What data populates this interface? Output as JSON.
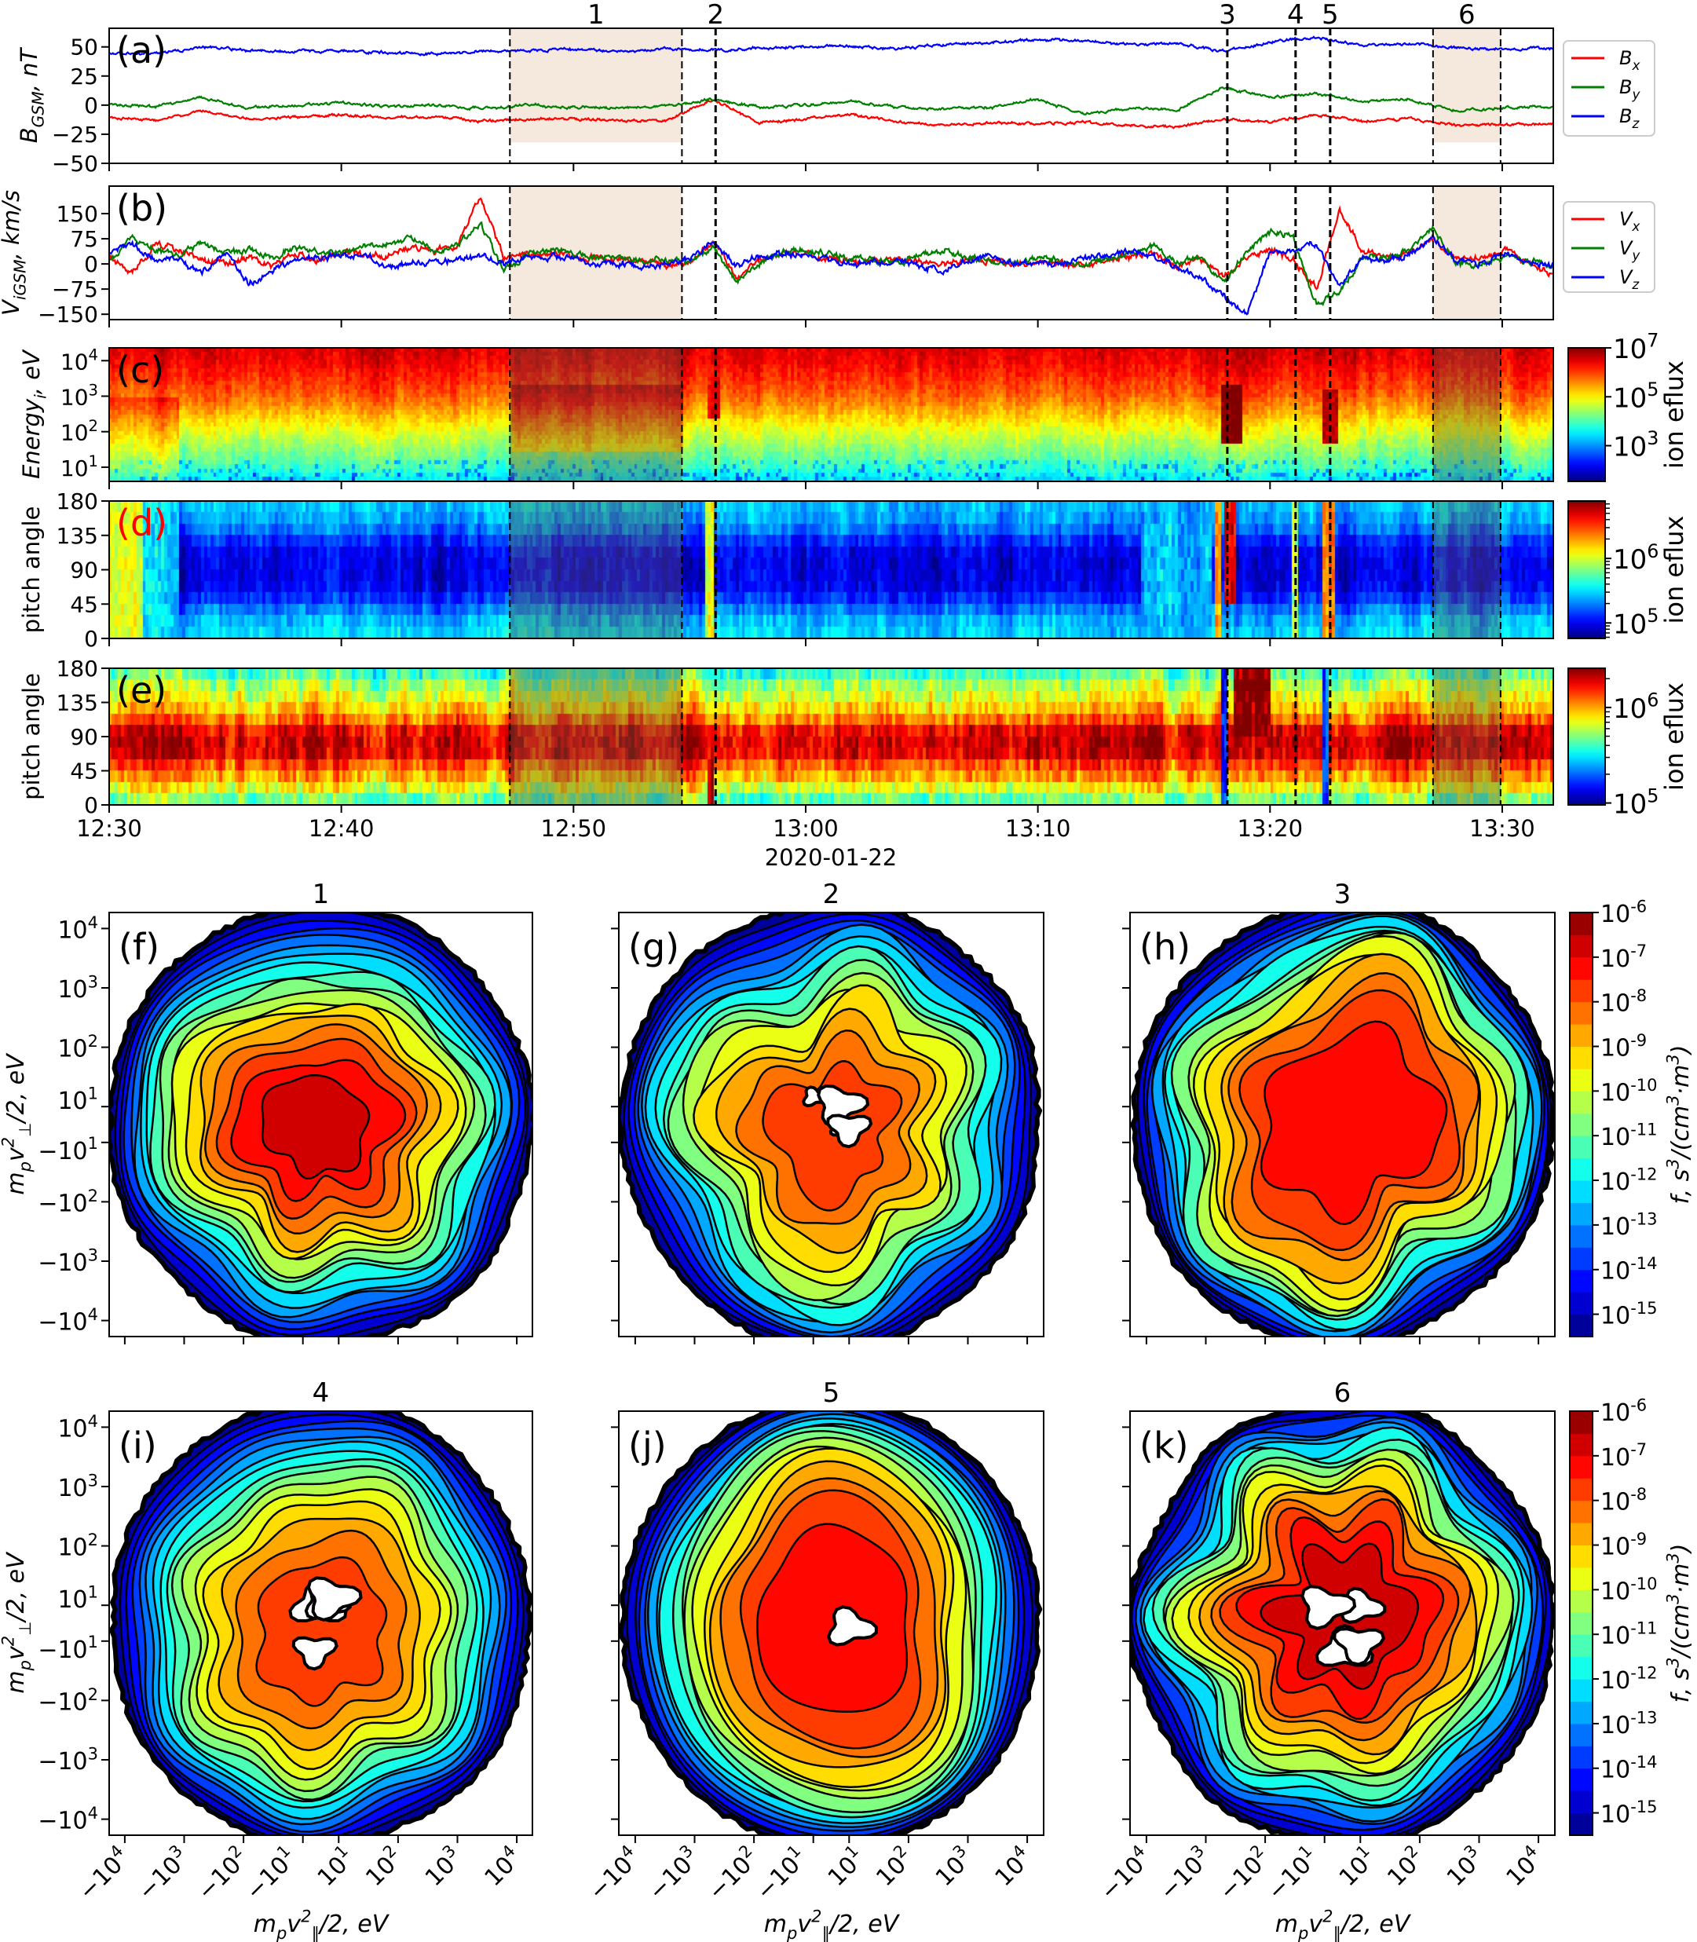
{
  "figure": {
    "date_label": "2020-01-22",
    "time_ticks": [
      {
        "t": 0,
        "label": "12:30"
      },
      {
        "t": 10,
        "label": "12:40"
      },
      {
        "t": 20,
        "label": "12:50"
      },
      {
        "t": 30,
        "label": "13:00"
      },
      {
        "t": 40,
        "label": "13:10"
      },
      {
        "t": 50,
        "label": "13:20"
      },
      {
        "t": 60,
        "label": "13:30"
      }
    ],
    "x_units": "minutes since 12:30 UT",
    "xlim": [
      0,
      62.2
    ],
    "events": [
      {
        "label": "1",
        "start": 17.26,
        "end": 24.67,
        "shaded": true
      },
      {
        "label": "2",
        "time": 26.12
      },
      {
        "label": "3",
        "time": 48.16
      },
      {
        "label": "4",
        "time": 51.1
      },
      {
        "label": "5",
        "time": 52.59
      },
      {
        "label": "6",
        "start": 57.02,
        "end": 59.93,
        "shaded": true
      }
    ]
  },
  "chart_data": [
    {
      "id": "a",
      "type": "line",
      "panel_label": "(a)",
      "ylabel": [
        [
          "B",
          ""
        ],
        [
          "GSM",
          "sub"
        ],
        [
          ", nT",
          ""
        ]
      ],
      "ylim": [
        -50,
        66
      ],
      "yticks": [
        -50,
        -25,
        0,
        25,
        50
      ],
      "shade_floor": -32,
      "t_step_min": 2,
      "series": [
        {
          "name": "B",
          "sub": "x",
          "color": "#ff0000",
          "values": [
            -10,
            -13,
            -5,
            -12,
            -10,
            -8,
            -11,
            -10,
            -14,
            -12,
            -12,
            -13,
            -14,
            5,
            -15,
            -12,
            -8,
            -15,
            -17,
            -15,
            -16,
            -15,
            -18,
            -19,
            -12,
            -14,
            -8,
            -14,
            -12,
            -17,
            -17,
            -16
          ]
        },
        {
          "name": "B",
          "sub": "y",
          "color": "#008000",
          "values": [
            0,
            -1,
            7,
            -3,
            0,
            2,
            -1,
            0,
            -3,
            0,
            -2,
            -2,
            -1,
            5,
            -2,
            0,
            3,
            -2,
            -3,
            -2,
            5,
            -8,
            -3,
            -4,
            15,
            7,
            10,
            3,
            5,
            -5,
            -2,
            -2
          ]
        },
        {
          "name": "B",
          "sub": "z",
          "color": "#0000ff",
          "values": [
            45,
            44,
            50,
            47,
            46,
            47,
            45,
            44,
            46,
            47,
            48,
            46,
            49,
            47,
            49,
            50,
            50,
            49,
            52,
            54,
            56,
            55,
            52,
            53,
            46,
            54,
            58,
            51,
            53,
            49,
            48,
            49
          ]
        }
      ]
    },
    {
      "id": "b",
      "type": "line",
      "panel_label": "(b)",
      "ylabel": [
        [
          "V",
          ""
        ],
        [
          "iGSM",
          "sub"
        ],
        [
          ", km/s",
          ""
        ]
      ],
      "ylim": [
        -166,
        232
      ],
      "yticks": [
        -150,
        -75,
        0,
        75,
        150
      ],
      "t_step_min": 1,
      "series": [
        {
          "name": "V",
          "sub": "x",
          "color": "#ff0000",
          "values": [
            20,
            -30,
            60,
            40,
            10,
            0,
            20,
            -10,
            30,
            10,
            40,
            30,
            20,
            50,
            40,
            60,
            200,
            20,
            30,
            30,
            20,
            20,
            10,
            10,
            0,
            0,
            70,
            -40,
            10,
            30,
            30,
            20,
            10,
            10,
            20,
            10,
            0,
            10,
            10,
            0,
            10,
            0,
            -10,
            10,
            20,
            30,
            -10,
            20,
            -40,
            20,
            40,
            10,
            -70,
            160,
            40,
            20,
            30,
            70,
            10,
            20,
            40,
            10,
            -30
          ]
        },
        {
          "name": "V",
          "sub": "y",
          "color": "#008000",
          "values": [
            10,
            80,
            40,
            20,
            60,
            30,
            40,
            20,
            50,
            40,
            30,
            50,
            60,
            80,
            40,
            50,
            120,
            -30,
            30,
            40,
            30,
            20,
            20,
            10,
            20,
            0,
            50,
            -50,
            0,
            40,
            40,
            30,
            20,
            10,
            0,
            30,
            40,
            20,
            10,
            0,
            20,
            10,
            0,
            10,
            30,
            50,
            10,
            20,
            -60,
            40,
            90,
            80,
            -120,
            -80,
            20,
            20,
            40,
            110,
            0,
            0,
            20,
            10,
            0
          ]
        },
        {
          "name": "V",
          "sub": "z",
          "color": "#0000ff",
          "values": [
            30,
            60,
            10,
            20,
            -30,
            40,
            -60,
            -20,
            10,
            20,
            20,
            30,
            -10,
            0,
            10,
            10,
            20,
            0,
            20,
            20,
            20,
            0,
            0,
            -10,
            0,
            10,
            70,
            0,
            20,
            30,
            20,
            10,
            0,
            10,
            10,
            -10,
            -20,
            10,
            20,
            0,
            0,
            0,
            20,
            20,
            40,
            20,
            -10,
            -40,
            -100,
            -150,
            30,
            40,
            60,
            -70,
            20,
            10,
            30,
            80,
            10,
            0,
            30,
            10,
            0
          ]
        }
      ]
    },
    {
      "id": "c",
      "type": "heatmap",
      "panel_label": "(c)",
      "ylabel": [
        [
          "Energy",
          ""
        ],
        [
          "i",
          "sub"
        ],
        [
          ", eV",
          ""
        ]
      ],
      "y_scale": "log10",
      "ylim": [
        0.6,
        4.36
      ],
      "yticks": [
        1,
        2,
        3,
        4
      ],
      "colorbar": {
        "label": "ion eflux",
        "scale": "log10",
        "range": [
          1.54,
          7.0
        ],
        "ticks": [
          3,
          5,
          7
        ]
      },
      "baseline_profile": [
        [
          0.6,
          3.4
        ],
        [
          1,
          3.9
        ],
        [
          2,
          4.8
        ],
        [
          3,
          5.8
        ],
        [
          4,
          6.4
        ],
        [
          4.36,
          6.5
        ]
      ],
      "features": [
        {
          "t0": 0,
          "t1": 3,
          "y0": 0.6,
          "y1": 3,
          "delta": 0.5
        },
        {
          "t0": 17.3,
          "t1": 24.7,
          "y0": 1.4,
          "y1": 3.3,
          "delta": 0.6
        },
        {
          "t0": 25.8,
          "t1": 26.3,
          "y0": 2.4,
          "y1": 3.5,
          "value": 6.4
        },
        {
          "t0": 47.9,
          "t1": 48.8,
          "y0": 1.6,
          "y1": 3.3,
          "value": 6.9
        },
        {
          "t0": 52.3,
          "t1": 52.9,
          "y0": 1.7,
          "y1": 3.2,
          "value": 6.6
        }
      ]
    },
    {
      "id": "d",
      "type": "heatmap",
      "panel_label": "(d)",
      "panel_label_color": "#ff0000",
      "ylabel": [
        [
          "pitch angle",
          ""
        ]
      ],
      "y_scale": "linear",
      "ylim": [
        0,
        180
      ],
      "yticks": [
        0,
        45,
        90,
        135,
        180
      ],
      "colorbar": {
        "label": "ion eflux",
        "scale": "log10",
        "range": [
          4.76,
          6.89
        ],
        "ticks": [
          5,
          6
        ]
      },
      "baseline_profile": [
        [
          0,
          5.5
        ],
        [
          22,
          5.4
        ],
        [
          45,
          5.2
        ],
        [
          60,
          5.0
        ],
        [
          90,
          4.95
        ],
        [
          120,
          5.0
        ],
        [
          135,
          5.2
        ],
        [
          157,
          5.35
        ],
        [
          180,
          5.45
        ]
      ],
      "features": [
        {
          "t0": 0,
          "t1": 1.5,
          "y0": 0,
          "y1": 180,
          "value": 6.0
        },
        {
          "t0": 1.5,
          "t1": 3,
          "y0": 0,
          "y1": 180,
          "value": 5.5
        },
        {
          "t0": 25.7,
          "t1": 26.1,
          "y0": 0,
          "y1": 180,
          "value": 6.0
        },
        {
          "t0": 44.5,
          "t1": 47.5,
          "y0": 0,
          "y1": 180,
          "value": 5.4
        },
        {
          "t0": 47.6,
          "t1": 47.9,
          "y0": 0,
          "y1": 180,
          "value": 6.2
        },
        {
          "t0": 48.0,
          "t1": 48.6,
          "y0": 45,
          "y1": 180,
          "value": 6.7
        },
        {
          "t0": 50.9,
          "t1": 51.2,
          "y0": 0,
          "y1": 180,
          "value": 6.0
        },
        {
          "t0": 52.3,
          "t1": 52.8,
          "y0": 0,
          "y1": 180,
          "value": 6.4
        }
      ]
    },
    {
      "id": "e",
      "type": "heatmap",
      "panel_label": "(e)",
      "ylabel": [
        [
          "pitch angle",
          ""
        ]
      ],
      "y_scale": "linear",
      "ylim": [
        0,
        180
      ],
      "yticks": [
        0,
        45,
        90,
        135,
        180
      ],
      "colorbar": {
        "label": "ion eflux",
        "scale": "log10",
        "range": [
          4.98,
          6.41
        ],
        "ticks": [
          5,
          6
        ]
      },
      "baseline_profile": [
        [
          0,
          5.6
        ],
        [
          15,
          5.75
        ],
        [
          30,
          5.95
        ],
        [
          50,
          6.1
        ],
        [
          70,
          6.3
        ],
        [
          95,
          6.3
        ],
        [
          105,
          6.15
        ],
        [
          120,
          6.0
        ],
        [
          140,
          5.85
        ],
        [
          165,
          5.7
        ],
        [
          180,
          5.55
        ]
      ],
      "features": [
        {
          "t0": 25.8,
          "t1": 26.1,
          "y0": 0,
          "y1": 60,
          "value": 6.35
        },
        {
          "t0": 47.9,
          "t1": 48.2,
          "y0": 0,
          "y1": 180,
          "value": 5.2
        },
        {
          "t0": 48.5,
          "t1": 50.0,
          "y0": 90,
          "y1": 180,
          "value": 6.4
        },
        {
          "t0": 52.3,
          "t1": 52.6,
          "y0": 0,
          "y1": 180,
          "value": 5.2
        }
      ]
    },
    {
      "id": "f",
      "type": "contour",
      "title": "1",
      "panel_label": "(f)",
      "peak_log10_f": -7.0,
      "gaps": false
    },
    {
      "id": "g",
      "type": "contour",
      "title": "2",
      "panel_label": "(g)",
      "peak_log10_f": -8.0,
      "gaps": true
    },
    {
      "id": "h",
      "type": "contour",
      "title": "3",
      "panel_label": "(h)",
      "peak_log10_f": -7.5,
      "gaps": false
    },
    {
      "id": "i",
      "type": "contour",
      "title": "4",
      "panel_label": "(i)",
      "peak_log10_f": -8.0,
      "gaps": true
    },
    {
      "id": "j",
      "type": "contour",
      "title": "5",
      "panel_label": "(j)",
      "peak_log10_f": -7.5,
      "gaps": true
    },
    {
      "id": "k",
      "type": "contour",
      "title": "6",
      "panel_label": "(k)",
      "peak_log10_f": -7.0,
      "gaps": true
    }
  ],
  "contour_axes": {
    "ticks": [
      -10000,
      -1000,
      -100,
      -10,
      10,
      100,
      1000,
      10000
    ],
    "xlabel": [
      [
        "m",
        ""
      ],
      [
        "p",
        "sub"
      ],
      [
        "v",
        ""
      ],
      [
        "2",
        "sup"
      ],
      [
        "∥",
        "sub"
      ],
      [
        "/2, eV",
        ""
      ]
    ],
    "ylabel": [
      [
        "m",
        ""
      ],
      [
        "p",
        "sub"
      ],
      [
        "v",
        ""
      ],
      [
        "2",
        "sup"
      ],
      [
        "⊥",
        "sub"
      ],
      [
        "/2, eV",
        ""
      ]
    ],
    "colorbar": {
      "label": [
        [
          "f, s",
          ""
        ],
        [
          "3",
          "sup"
        ],
        [
          "/(cm",
          ""
        ],
        [
          "3",
          "sup"
        ],
        [
          "·m",
          ""
        ],
        [
          "3",
          "sup"
        ],
        [
          ")",
          ""
        ]
      ],
      "range": [
        -15.5,
        -6
      ],
      "levels_step": 0.5,
      "ticks": [
        -6,
        -7,
        -8,
        -9,
        -10,
        -11,
        -12,
        -13,
        -14,
        -15
      ]
    }
  }
}
